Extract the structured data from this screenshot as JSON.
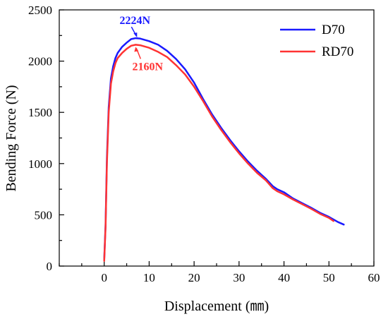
{
  "chart_data": {
    "type": "line",
    "xlabel": "Displacement (㎜)",
    "ylabel": "Bending Force (N)",
    "xlim": [
      -10,
      60
    ],
    "ylim": [
      0,
      2500
    ],
    "xticks": [
      0,
      10,
      20,
      30,
      40,
      50,
      60
    ],
    "yticks": [
      0,
      500,
      1000,
      1500,
      2000,
      2500
    ],
    "grid": false,
    "legend_position": "top-right",
    "series": [
      {
        "name": "D70",
        "color": "#1a1aff",
        "x": [
          0,
          0.3,
          0.6,
          1.0,
          1.5,
          2.0,
          2.5,
          3.0,
          4.0,
          5.0,
          6.0,
          7.0,
          8.0,
          10.0,
          12.0,
          14.0,
          16.0,
          18.0,
          20.0,
          22.0,
          24.0,
          26.0,
          28.0,
          30.0,
          32.0,
          34.0,
          36.0,
          37.5,
          38.5,
          40.0,
          42.0,
          44.0,
          46.0,
          48.0,
          50.0,
          52.0,
          53.3
        ],
        "y": [
          60,
          400,
          1050,
          1550,
          1830,
          1950,
          2030,
          2080,
          2140,
          2180,
          2215,
          2224,
          2220,
          2195,
          2160,
          2100,
          2020,
          1920,
          1790,
          1630,
          1480,
          1350,
          1230,
          1120,
          1020,
          930,
          850,
          780,
          750,
          720,
          660,
          615,
          570,
          520,
          480,
          430,
          405
        ]
      },
      {
        "name": "RD70",
        "color": "#ff3333",
        "x": [
          0,
          0.3,
          0.6,
          1.0,
          1.5,
          2.0,
          2.5,
          3.0,
          4.0,
          5.0,
          6.0,
          7.0,
          8.0,
          10.0,
          12.0,
          14.0,
          16.0,
          18.0,
          20.0,
          22.0,
          24.0,
          26.0,
          28.0,
          30.0,
          32.0,
          34.0,
          36.0,
          37.5,
          38.5,
          40.0,
          42.0,
          44.0,
          46.0,
          48.0,
          50.0,
          51.0
        ],
        "y": [
          50,
          380,
          1000,
          1500,
          1780,
          1900,
          1980,
          2030,
          2080,
          2120,
          2150,
          2160,
          2155,
          2130,
          2090,
          2040,
          1960,
          1870,
          1750,
          1610,
          1460,
          1330,
          1210,
          1100,
          1000,
          910,
          835,
          760,
          730,
          700,
          650,
          605,
          560,
          510,
          470,
          440
        ]
      }
    ],
    "annotations": [
      {
        "text": "2224N",
        "color": "#1a1aff",
        "x": 7.0,
        "y": 2224
      },
      {
        "text": "2160N",
        "color": "#ff3333",
        "x": 7.0,
        "y": 2160
      }
    ]
  }
}
